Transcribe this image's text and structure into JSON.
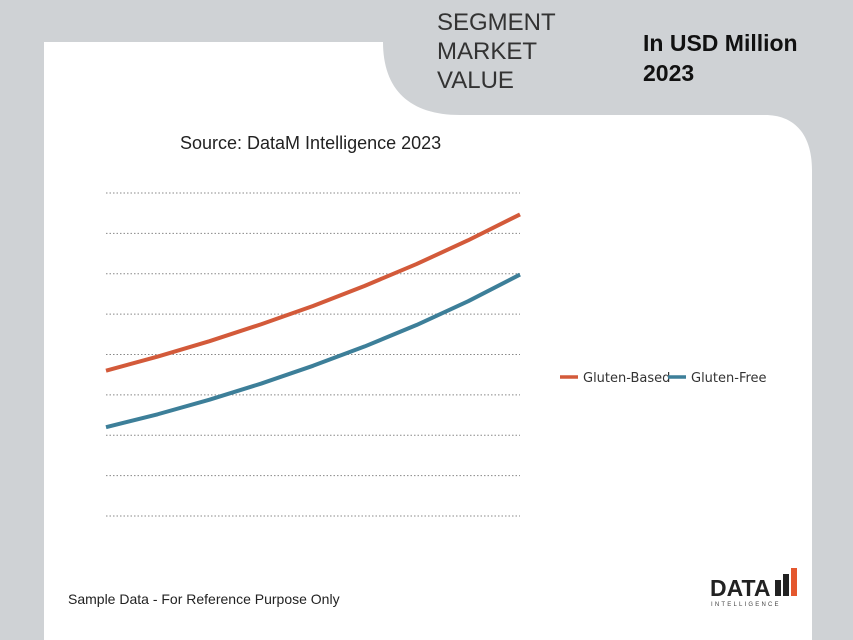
{
  "header": {
    "segment_title": "SEGMENT\nMARKET\nVALUE",
    "unit_label": "In USD Million\n2023"
  },
  "source_text": "Source: DataM Intelligence 2023",
  "footer_note": "Sample Data - For Reference Purpose Only",
  "logo": {
    "word": "DATA",
    "subword": "INTELLIGENCE",
    "bar_color": "#e4572e"
  },
  "colors": {
    "background": "#cfd2d5",
    "panel": "#ffffff",
    "gluten_based": "#d35a3a",
    "gluten_free": "#3d7f99",
    "grid": "#888888"
  },
  "chart_data": {
    "type": "line",
    "title": "",
    "xlabel": "",
    "ylabel": "",
    "ylim": [
      0,
      8
    ],
    "grid": true,
    "grid_lines": 8,
    "legend_position": "right",
    "x": [
      0,
      1,
      2,
      3,
      4,
      5,
      6,
      7,
      8
    ],
    "series": [
      {
        "name": "Gluten-Based",
        "color": "#d35a3a",
        "values": [
          3.6,
          3.95,
          4.33,
          4.75,
          5.2,
          5.7,
          6.24,
          6.83,
          7.47
        ]
      },
      {
        "name": "Gluten-Free",
        "color": "#3d7f99",
        "values": [
          2.2,
          2.52,
          2.88,
          3.28,
          3.72,
          4.2,
          4.73,
          5.32,
          5.98
        ]
      }
    ]
  }
}
